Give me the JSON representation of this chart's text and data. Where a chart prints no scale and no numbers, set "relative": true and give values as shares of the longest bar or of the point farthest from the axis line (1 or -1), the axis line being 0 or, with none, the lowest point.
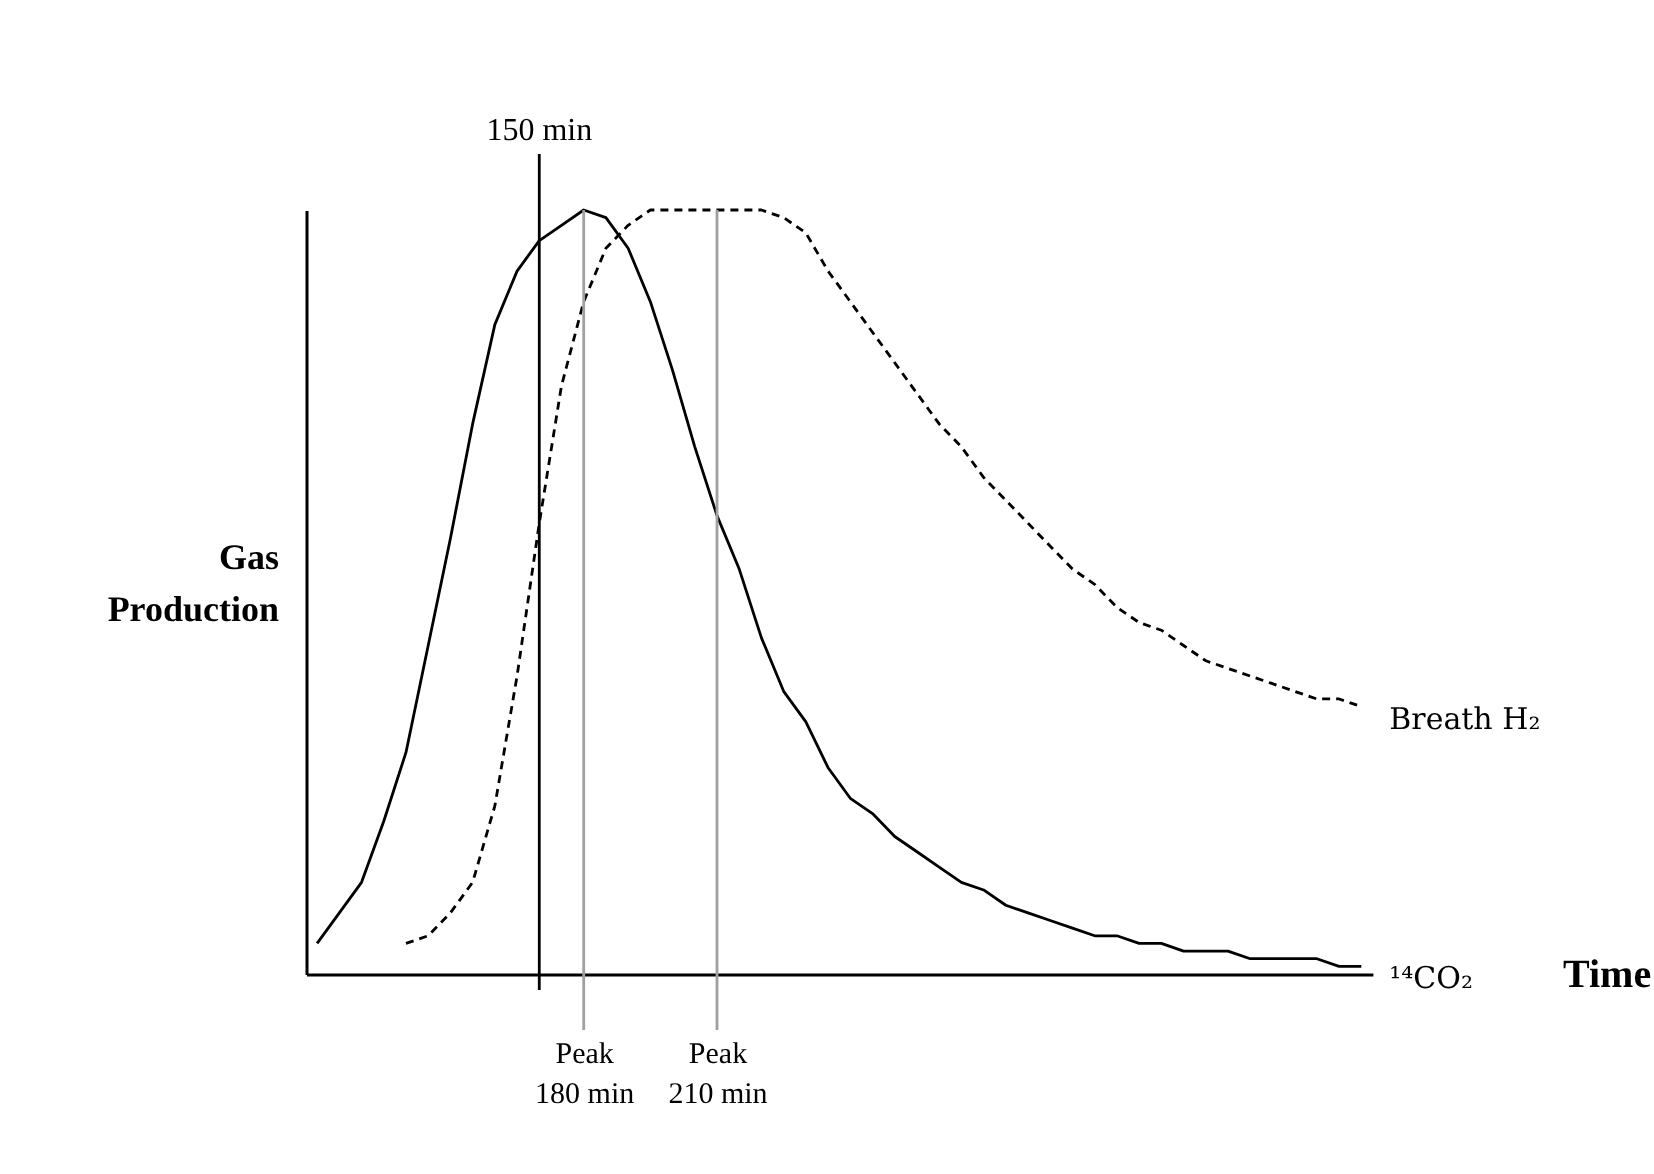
{
  "chart_data": {
    "type": "line",
    "xlabel": "Time",
    "ylabel": "Gas Production",
    "relative": true,
    "tick_labels": "x",
    "categories": [
      null,
      null,
      null,
      null,
      null,
      null,
      null,
      null,
      null,
      null,
      "150 min",
      null,
      "Peak 180 min",
      null,
      null,
      null,
      null,
      null,
      "Peak 210 min",
      null,
      null,
      null,
      null,
      null,
      null,
      null,
      null,
      null,
      null,
      null,
      null,
      null,
      null,
      null,
      null,
      null,
      null,
      null,
      null,
      null,
      null,
      null,
      null,
      null,
      null,
      null,
      null,
      null
    ],
    "series": [
      {
        "name": "¹⁴CO₂",
        "color": "#000000",
        "line_style": "solid",
        "values": [
          0.04,
          0.08,
          0.12,
          0.2,
          0.29,
          0.43,
          0.57,
          0.72,
          0.85,
          0.92,
          0.96,
          0.98,
          1.0,
          0.99,
          0.95,
          0.88,
          0.79,
          0.69,
          0.6,
          0.53,
          0.44,
          0.37,
          0.33,
          0.27,
          0.23,
          0.21,
          0.18,
          0.16,
          0.14,
          0.12,
          0.11,
          0.09,
          0.08,
          0.07,
          0.06,
          0.05,
          0.05,
          0.04,
          0.04,
          0.03,
          0.03,
          0.03,
          0.02,
          0.02,
          0.02,
          0.02,
          0.01,
          0.01
        ]
      },
      {
        "name": "Breath H₂",
        "color": "#000000",
        "line_style": "dashed",
        "values": [
          null,
          null,
          null,
          null,
          0.04,
          0.05,
          0.08,
          0.12,
          0.22,
          0.39,
          0.59,
          0.77,
          0.88,
          0.95,
          0.98,
          1.0,
          1.0,
          1.0,
          1.0,
          1.0,
          1.0,
          0.99,
          0.97,
          0.92,
          0.88,
          0.84,
          0.8,
          0.76,
          0.72,
          0.69,
          0.65,
          0.62,
          0.59,
          0.56,
          0.53,
          0.51,
          0.48,
          0.46,
          0.45,
          0.43,
          0.41,
          0.4,
          0.39,
          0.38,
          0.37,
          0.36,
          0.36,
          0.35
        ]
      }
    ],
    "ref_lines": [
      {
        "axis": "x",
        "value": "150 min",
        "color": "#000000"
      },
      {
        "axis": "x",
        "value": "Peak 180 min",
        "color": "#a0a0a0"
      },
      {
        "axis": "x",
        "value": "Peak 210 min",
        "color": "#a0a0a0"
      }
    ]
  }
}
